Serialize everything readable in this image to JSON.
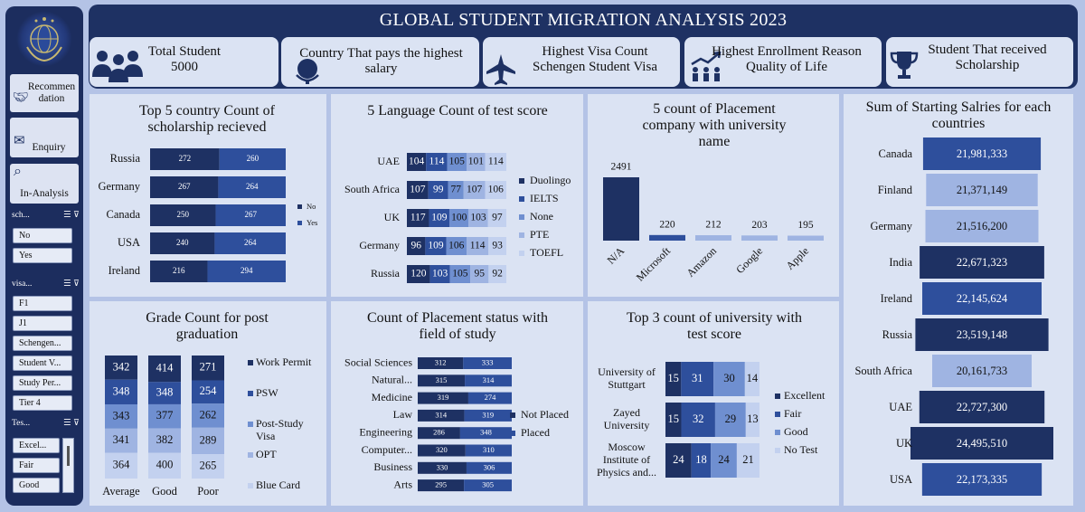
{
  "title": "GLOBAL STUDENT MIGRATION ANALYSIS 2023",
  "nav": {
    "recommendation": "Recommen dation",
    "enquiry": "Enquiry",
    "in_analysis": "In-Analysis"
  },
  "slicers": {
    "scholarship": {
      "header": "sch...",
      "items": [
        "No",
        "Yes"
      ]
    },
    "visa": {
      "header": "visa...",
      "items": [
        "F1",
        "J1",
        "Schengen...",
        "Student V...",
        "Study Per...",
        "Tier 4"
      ]
    },
    "test": {
      "header": "Tes...",
      "items": [
        "Excel...",
        "Fair",
        "Good"
      ]
    }
  },
  "kpis": [
    {
      "line1": "Total Student",
      "line2": "5000",
      "icon": "people-icon"
    },
    {
      "line1": "Country That pays the highest",
      "line2": "salary",
      "icon": "globe-icon"
    },
    {
      "line1": "Highest Visa Count",
      "line2": "Schengen Student Visa",
      "icon": "airplane-icon"
    },
    {
      "line1": "Highest Enrollment Reason",
      "line2": "Quality of Life",
      "icon": "growth-icon"
    },
    {
      "line1": "Student That received",
      "line2": "Scholarship",
      "icon": "trophy-icon"
    }
  ],
  "colors": {
    "c1": "#1e3163",
    "c2": "#2e4f9c",
    "c3": "#6f8fd0",
    "c4": "#9fb4e2",
    "c5": "#c3d1ef"
  },
  "chart_data": [
    {
      "id": "scholarship",
      "type": "bar",
      "title": "Top 5 country Count of scholarship recieved",
      "categories": [
        "Russia",
        "Germany",
        "Canada",
        "USA",
        "Ireland"
      ],
      "series": [
        {
          "name": "No",
          "values": [
            272,
            267,
            250,
            240,
            216
          ]
        },
        {
          "name": "Yes",
          "values": [
            260,
            264,
            267,
            264,
            294
          ]
        }
      ]
    },
    {
      "id": "language",
      "type": "bar",
      "title": "5 Language Count of test score",
      "categories": [
        "UAE",
        "South Africa",
        "UK",
        "Germany",
        "Russia"
      ],
      "series": [
        {
          "name": "Duolingo",
          "values": [
            104,
            107,
            117,
            96,
            120
          ]
        },
        {
          "name": "IELTS",
          "values": [
            114,
            99,
            109,
            109,
            103
          ]
        },
        {
          "name": "None",
          "values": [
            105,
            77,
            100,
            106,
            105
          ]
        },
        {
          "name": "PTE",
          "values": [
            101,
            107,
            103,
            114,
            95
          ]
        },
        {
          "name": "TOEFL",
          "values": [
            114,
            106,
            97,
            93,
            92
          ]
        }
      ]
    },
    {
      "id": "placement_company",
      "type": "bar",
      "title": "5 count of Placement company with university name",
      "categories": [
        "N/A",
        "Microsoft",
        "Amazon",
        "Google",
        "Apple"
      ],
      "values": [
        2491,
        220,
        212,
        203,
        195
      ]
    },
    {
      "id": "salaries",
      "type": "bar",
      "title": "Sum of Starting Salries for each countries",
      "categories": [
        "Canada",
        "Finland",
        "Germany",
        "India",
        "Ireland",
        "Russia",
        "South Africa",
        "UAE",
        "UK",
        "USA"
      ],
      "values": [
        21981333,
        21371149,
        21516200,
        22671323,
        22145624,
        23519148,
        20161733,
        22727300,
        24495510,
        22173335
      ],
      "labels": [
        "21,981,333",
        "21,371,149",
        "21,516,200",
        "22,671,323",
        "22,145,624",
        "23,519,148",
        "20,161,733",
        "22,727,300",
        "24,495,510",
        "22,173,335"
      ]
    },
    {
      "id": "grade",
      "type": "bar",
      "title": "Grade Count for post graduation",
      "categories": [
        "Average",
        "Good",
        "Poor"
      ],
      "series": [
        {
          "name": "Work Permit",
          "values": [
            342,
            414,
            271
          ]
        },
        {
          "name": "PSW",
          "values": [
            348,
            348,
            254
          ]
        },
        {
          "name": "Post-Study Visa",
          "values": [
            343,
            377,
            262
          ]
        },
        {
          "name": "OPT",
          "values": [
            341,
            382,
            289
          ]
        },
        {
          "name": "Blue Card",
          "values": [
            364,
            400,
            265
          ]
        }
      ]
    },
    {
      "id": "placement_status",
      "type": "bar",
      "title": "Count of Placement status with field of study",
      "categories": [
        "Social Sciences",
        "Natural...",
        "Medicine",
        "Law",
        "Engineering",
        "Computer...",
        "Business",
        "Arts"
      ],
      "series": [
        {
          "name": "Not Placed",
          "values": [
            312,
            315,
            319,
            314,
            286,
            320,
            330,
            295
          ]
        },
        {
          "name": "Placed",
          "values": [
            333,
            314,
            274,
            319,
            348,
            310,
            306,
            305
          ]
        }
      ]
    },
    {
      "id": "university",
      "type": "bar",
      "title": "Top 3 count of university with test score",
      "categories": [
        "University of Stuttgart",
        "Zayed University",
        "Moscow Institute of Physics and..."
      ],
      "series": [
        {
          "name": "Excellent",
          "values": [
            15,
            15,
            24
          ]
        },
        {
          "name": "Fair",
          "values": [
            31,
            32,
            18
          ]
        },
        {
          "name": "Good",
          "values": [
            30,
            29,
            24
          ]
        },
        {
          "name": "No Test",
          "values": [
            14,
            13,
            21
          ]
        }
      ]
    }
  ]
}
